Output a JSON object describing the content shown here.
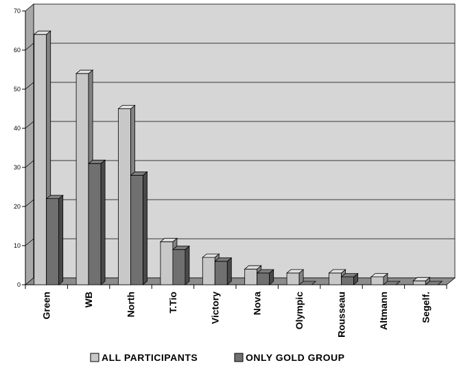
{
  "chart_data": {
    "type": "bar",
    "title": "",
    "xlabel": "",
    "ylabel": "",
    "ylim": [
      0,
      70
    ],
    "yticks": [
      0,
      10,
      20,
      30,
      40,
      50,
      60,
      70
    ],
    "grid": true,
    "legend_position": "bottom",
    "categories": [
      "Green",
      "WB",
      "North",
      "T.Tio",
      "Victory",
      "Nova",
      "Olympic",
      "Rousseau",
      "Altmann",
      "Segelf."
    ],
    "series": [
      {
        "name": "ALL PARTICIPANTS",
        "color": "#c8c8c8",
        "values": [
          64,
          54,
          45,
          11,
          7,
          4,
          3,
          3,
          2,
          1
        ]
      },
      {
        "name": "ONLY GOLD GROUP",
        "color": "#707070",
        "values": [
          22,
          31,
          28,
          9,
          6,
          3,
          0,
          2,
          0,
          0
        ]
      }
    ]
  }
}
